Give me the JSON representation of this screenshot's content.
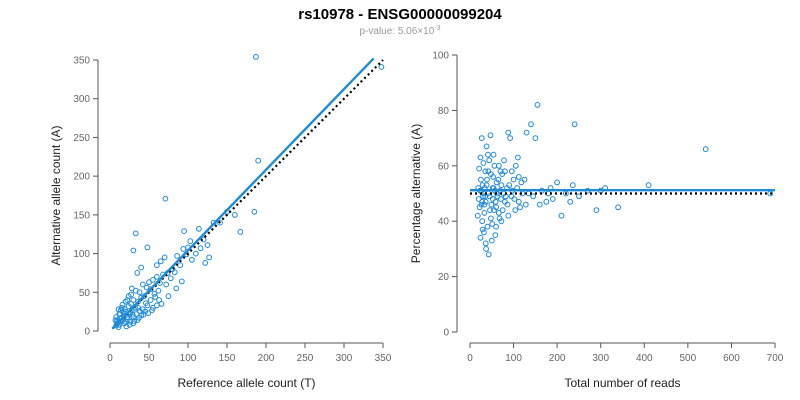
{
  "title": "rs10978 - ENSG00000099204",
  "subtitle": {
    "prefix": "p-value: 5.06×10",
    "exponent": "-3"
  },
  "colors": {
    "points": "#1f8ad6",
    "fit_line": "#1f8ad6",
    "reference_line": "#000000",
    "axis": "#555555",
    "tick_text": "#666666"
  },
  "chart_data": [
    {
      "type": "scatter",
      "id": "left",
      "xlabel": "Reference allele count (T)",
      "ylabel": "Alternative allele count (A)",
      "xlim": [
        0,
        350
      ],
      "ylim": [
        0,
        350
      ],
      "xticks": [
        0,
        50,
        100,
        150,
        200,
        250,
        300,
        350
      ],
      "yticks": [
        0,
        50,
        100,
        150,
        200,
        250,
        300,
        350
      ],
      "fit_line": {
        "x": [
          3,
          338
        ],
        "y": [
          3,
          352
        ]
      },
      "reference_line": {
        "x": [
          3,
          350
        ],
        "y": [
          3,
          350
        ]
      },
      "points": [
        [
          187,
          354
        ],
        [
          348,
          341
        ],
        [
          71,
          171
        ],
        [
          190,
          220
        ],
        [
          33,
          126
        ],
        [
          185,
          154
        ],
        [
          150,
          154
        ],
        [
          167,
          128
        ],
        [
          95,
          129
        ],
        [
          114,
          132
        ],
        [
          48,
          108
        ],
        [
          30,
          104
        ],
        [
          103,
          116
        ],
        [
          116,
          107
        ],
        [
          125,
          111
        ],
        [
          127,
          95
        ],
        [
          98,
          99
        ],
        [
          94,
          106
        ],
        [
          86,
          97
        ],
        [
          70,
          95
        ],
        [
          65,
          90
        ],
        [
          122,
          88
        ],
        [
          60,
          85
        ],
        [
          80,
          80
        ],
        [
          74,
          75
        ],
        [
          68,
          73
        ],
        [
          60,
          70
        ],
        [
          55,
          66
        ],
        [
          50,
          63
        ],
        [
          64,
          62
        ],
        [
          42,
          60
        ],
        [
          47,
          56
        ],
        [
          52,
          54
        ],
        [
          33,
          52
        ],
        [
          38,
          50
        ],
        [
          57,
          48
        ],
        [
          44,
          45
        ],
        [
          40,
          43
        ],
        [
          30,
          40
        ],
        [
          36,
          38
        ],
        [
          27,
          35
        ],
        [
          46,
          36
        ],
        [
          24,
          32
        ],
        [
          32,
          30
        ],
        [
          28,
          27
        ],
        [
          20,
          25
        ],
        [
          25,
          22
        ],
        [
          18,
          20
        ],
        [
          22,
          18
        ],
        [
          15,
          17
        ],
        [
          12,
          16
        ],
        [
          16,
          14
        ],
        [
          14,
          12
        ],
        [
          10,
          11
        ],
        [
          9,
          9
        ],
        [
          12,
          8
        ],
        [
          8,
          7
        ],
        [
          11,
          5
        ],
        [
          7,
          14
        ],
        [
          13,
          22
        ],
        [
          19,
          28
        ],
        [
          23,
          15
        ],
        [
          26,
          12
        ],
        [
          30,
          18
        ],
        [
          34,
          22
        ],
        [
          38,
          26
        ],
        [
          42,
          28
        ],
        [
          48,
          33
        ],
        [
          52,
          40
        ],
        [
          58,
          44
        ],
        [
          62,
          52
        ],
        [
          40,
          20
        ],
        [
          45,
          25
        ],
        [
          35,
          14
        ],
        [
          30,
          10
        ],
        [
          18,
          10
        ],
        [
          21,
          6
        ],
        [
          26,
          24
        ],
        [
          29,
          21
        ],
        [
          17,
          24
        ],
        [
          14,
          27
        ],
        [
          36,
          30
        ],
        [
          55,
          30
        ],
        [
          63,
          40
        ],
        [
          72,
          60
        ],
        [
          78,
          68
        ],
        [
          83,
          76
        ],
        [
          90,
          85
        ],
        [
          105,
          92
        ],
        [
          110,
          100
        ],
        [
          141,
          140
        ],
        [
          160,
          150
        ],
        [
          133,
          140
        ],
        [
          120,
          118
        ],
        [
          100,
          108
        ],
        [
          20,
          38
        ],
        [
          24,
          45
        ],
        [
          28,
          55
        ],
        [
          35,
          75
        ],
        [
          40,
          82
        ],
        [
          15,
          30
        ],
        [
          12,
          22
        ],
        [
          9,
          13
        ],
        [
          8,
          18
        ],
        [
          20,
          12
        ],
        [
          25,
          8
        ],
        [
          31,
          13
        ],
        [
          37,
          17
        ],
        [
          43,
          21
        ],
        [
          49,
          23
        ],
        [
          54,
          27
        ],
        [
          60,
          33
        ],
        [
          66,
          35
        ],
        [
          75,
          45
        ],
        [
          85,
          55
        ],
        [
          92,
          64
        ],
        [
          11,
          28
        ],
        [
          16,
          34
        ],
        [
          22,
          40
        ],
        [
          27,
          47
        ]
      ]
    },
    {
      "type": "scatter",
      "id": "right",
      "xlabel": "Total number of reads",
      "ylabel": "Percentage alternative (A)",
      "xlim": [
        0,
        700
      ],
      "ylim": [
        0,
        100
      ],
      "xticks": [
        0,
        100,
        200,
        300,
        400,
        500,
        600,
        700
      ],
      "yticks": [
        0,
        20,
        40,
        60,
        80,
        100
      ],
      "fit_line": {
        "x": [
          0,
          700
        ],
        "y": [
          51.2,
          51.2
        ]
      },
      "reference_line": {
        "x": [
          0,
          700
        ],
        "y": [
          50,
          50
        ]
      },
      "points": [
        [
          541,
          66
        ],
        [
          689,
          50
        ],
        [
          410,
          53
        ],
        [
          340,
          45
        ],
        [
          300,
          51
        ],
        [
          290,
          44
        ],
        [
          240,
          75
        ],
        [
          236,
          53
        ],
        [
          230,
          47
        ],
        [
          210,
          42
        ],
        [
          200,
          54
        ],
        [
          190,
          48
        ],
        [
          180,
          50
        ],
        [
          175,
          47
        ],
        [
          160,
          46
        ],
        [
          155,
          82
        ],
        [
          150,
          70
        ],
        [
          140,
          75
        ],
        [
          130,
          72
        ],
        [
          125,
          55
        ],
        [
          120,
          50
        ],
        [
          115,
          45
        ],
        [
          110,
          63
        ],
        [
          105,
          60
        ],
        [
          100,
          55
        ],
        [
          95,
          49
        ],
        [
          92,
          70
        ],
        [
          88,
          72
        ],
        [
          85,
          52
        ],
        [
          80,
          47
        ],
        [
          78,
          62
        ],
        [
          75,
          44
        ],
        [
          72,
          53
        ],
        [
          70,
          58
        ],
        [
          68,
          41
        ],
        [
          65,
          55
        ],
        [
          62,
          50
        ],
        [
          60,
          45
        ],
        [
          58,
          35
        ],
        [
          56,
          60
        ],
        [
          54,
          52
        ],
        [
          52,
          48
        ],
        [
          50,
          33
        ],
        [
          48,
          57
        ],
        [
          46,
          44
        ],
        [
          44,
          62
        ],
        [
          42,
          50
        ],
        [
          40,
          38
        ],
        [
          39,
          55
        ],
        [
          38,
          67
        ],
        [
          37,
          30
        ],
        [
          36,
          47
        ],
        [
          35,
          58
        ],
        [
          34,
          52
        ],
        [
          33,
          43
        ],
        [
          32,
          36
        ],
        [
          31,
          61
        ],
        [
          30,
          49
        ],
        [
          29,
          53
        ],
        [
          28,
          40
        ],
        [
          27,
          70
        ],
        [
          26,
          46
        ],
        [
          25,
          55
        ],
        [
          24,
          34
        ],
        [
          23,
          51
        ],
        [
          22,
          45
        ],
        [
          21,
          59
        ],
        [
          20,
          48
        ],
        [
          19,
          52
        ],
        [
          18,
          42
        ],
        [
          41,
          64
        ],
        [
          43,
          28
        ],
        [
          47,
          71
        ],
        [
          49,
          46
        ],
        [
          51,
          39
        ],
        [
          53,
          56
        ],
        [
          55,
          44
        ],
        [
          57,
          51
        ],
        [
          59,
          47
        ],
        [
          61,
          54
        ],
        [
          63,
          49
        ],
        [
          66,
          43
        ],
        [
          69,
          51
        ],
        [
          71,
          48
        ],
        [
          74,
          57
        ],
        [
          77,
          50
        ],
        [
          82,
          49
        ],
        [
          86,
          46
        ],
        [
          90,
          53
        ],
        [
          97,
          51
        ],
        [
          102,
          48
        ],
        [
          108,
          52
        ],
        [
          112,
          47
        ],
        [
          118,
          54
        ],
        [
          135,
          50
        ],
        [
          145,
          49
        ],
        [
          165,
          51
        ],
        [
          185,
          52
        ],
        [
          220,
          50
        ],
        [
          250,
          49
        ],
        [
          270,
          51
        ],
        [
          310,
          52
        ],
        [
          28,
          47
        ],
        [
          31,
          50
        ],
        [
          35,
          49
        ],
        [
          26,
          51
        ],
        [
          33,
          46
        ],
        [
          38,
          53
        ],
        [
          45,
          49
        ],
        [
          52,
          52
        ],
        [
          24,
          63
        ],
        [
          29,
          37
        ],
        [
          36,
          32
        ],
        [
          42,
          58
        ],
        [
          48,
          41
        ],
        [
          54,
          64
        ],
        [
          60,
          38
        ],
        [
          66,
          60
        ],
        [
          72,
          40
        ],
        [
          80,
          58
        ],
        [
          88,
          42
        ],
        [
          96,
          58
        ],
        [
          104,
          44
        ],
        [
          112,
          56
        ],
        [
          128,
          46
        ]
      ]
    }
  ]
}
